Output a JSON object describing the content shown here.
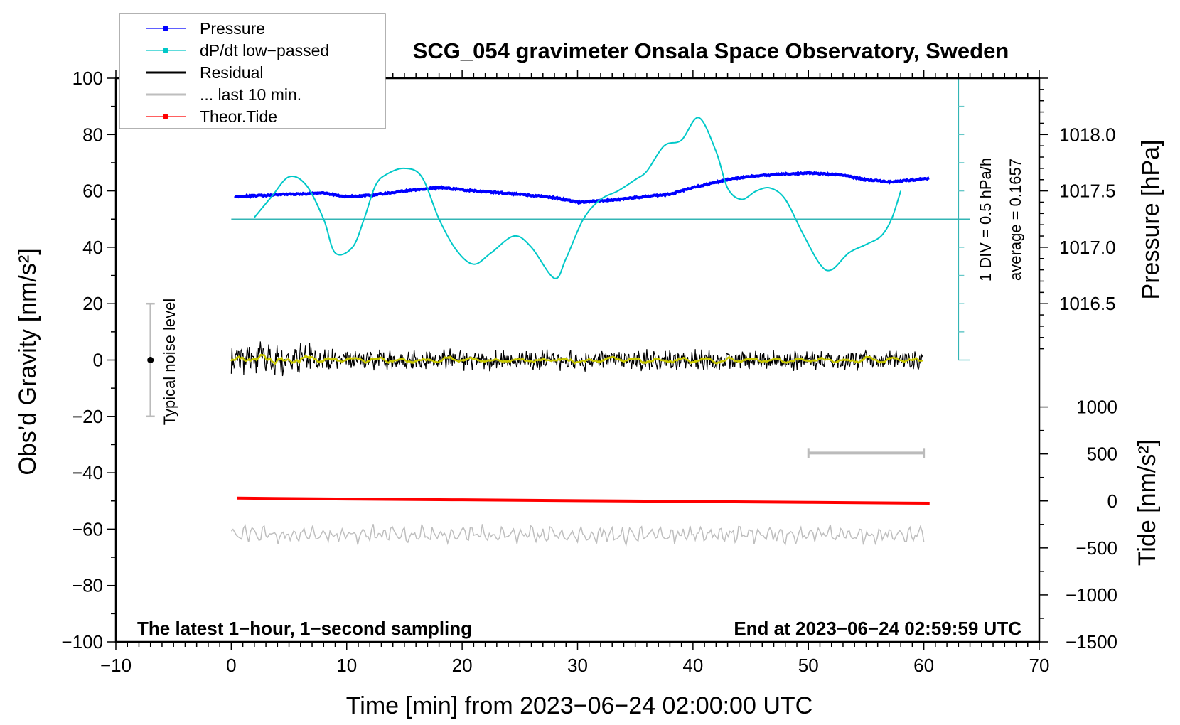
{
  "chart_data": {
    "type": "line",
    "title": "SCG_054 gravimeter Onsala Space Observatory, Sweden",
    "xlabel": "Time [min] from 2023−06−24 02:00:00 UTC",
    "ylabel": "Obs’d Gravity [nm/s²]",
    "y2label_pressure": "Pressure [hPa]",
    "y2label_tide": "Tide [nm/s²]",
    "xlim": [
      -10,
      70
    ],
    "ylim": [
      -100,
      100
    ],
    "xticks": [
      -10,
      0,
      10,
      20,
      30,
      40,
      50,
      60,
      70
    ],
    "xtick_labels": [
      "−10",
      "0",
      "10",
      "20",
      "30",
      "40",
      "50",
      "60",
      "70"
    ],
    "yticks": [
      100,
      80,
      60,
      40,
      20,
      0,
      -20,
      -40,
      -60,
      -80,
      -100
    ],
    "ytick_labels": [
      "100",
      "80",
      "60",
      "40",
      "20",
      "0",
      "−20",
      "−40",
      "−60",
      "−80",
      "−100"
    ],
    "pressure_ticks": [
      1018.0,
      1017.5,
      1017.0,
      1016.5
    ],
    "pressure_tick_labels": [
      "1018.0",
      "1017.5",
      "1017.0",
      "1016.5"
    ],
    "tide_ticks": [
      1000,
      500,
      0,
      -500,
      -1000,
      -1500
    ],
    "tide_tick_labels": [
      "1000",
      "500",
      "0",
      "−500",
      "−1000",
      "−1500"
    ],
    "legend": {
      "placement": "top-left",
      "entries": [
        {
          "label": "Pressure",
          "color": "#0000ff",
          "marker": true
        },
        {
          "label": "dP/dt low−passed",
          "color": "#00c8c8",
          "marker": true
        },
        {
          "label": "Residual",
          "color": "#000000",
          "marker": false
        },
        {
          "label": "... last 10 min.",
          "color": "#bebebe",
          "marker": false
        },
        {
          "label": "Theor.Tide",
          "color": "#ff0000",
          "marker": true
        }
      ]
    },
    "series": [
      {
        "name": "Pressure",
        "unit": "hPa",
        "color": "#0000ff",
        "x": [
          0.3,
          3,
          5,
          8,
          10,
          12,
          15,
          18,
          20,
          25,
          28,
          30,
          33,
          35,
          38,
          40,
          43,
          45,
          48,
          50,
          53,
          55,
          57,
          60.5
        ],
        "y": [
          1017.45,
          1017.46,
          1017.47,
          1017.48,
          1017.45,
          1017.46,
          1017.5,
          1017.53,
          1017.51,
          1017.47,
          1017.44,
          1017.4,
          1017.42,
          1017.44,
          1017.47,
          1017.53,
          1017.6,
          1017.63,
          1017.65,
          1017.66,
          1017.64,
          1017.6,
          1017.58,
          1017.61
        ]
      },
      {
        "name": "dP/dt low-passed",
        "unit": "hPa/h",
        "color": "#00c8c8",
        "baseline": 0,
        "average": 0.1657,
        "x": [
          2,
          3.5,
          5,
          6.5,
          8,
          9,
          10.5,
          11.5,
          12.5,
          13.5,
          15,
          16.5,
          18,
          19.5,
          21,
          22.5,
          24.5,
          26,
          28,
          29,
          30.5,
          32,
          33.5,
          35,
          36,
          37.5,
          39,
          40.5,
          42,
          43,
          44.2,
          45.5,
          46.7,
          48,
          49.5,
          51,
          52,
          53.5,
          55,
          56.3,
          57.2,
          58
        ],
        "y": [
          0.03,
          0.4,
          0.75,
          0.6,
          0.0,
          -0.6,
          -0.5,
          0.0,
          0.6,
          0.8,
          0.9,
          0.75,
          0.0,
          -0.55,
          -0.8,
          -0.6,
          -0.3,
          -0.5,
          -1.05,
          -0.7,
          0.0,
          0.35,
          0.5,
          0.7,
          0.85,
          1.3,
          1.4,
          1.8,
          1.2,
          0.55,
          0.35,
          0.5,
          0.55,
          0.35,
          -0.25,
          -0.8,
          -0.9,
          -0.6,
          -0.45,
          -0.3,
          0.0,
          0.5
        ]
      },
      {
        "name": "Residual",
        "unit": "nm/s²",
        "color": "#000000",
        "x_range": [
          0,
          60
        ],
        "mean": 0,
        "noise_amplitude_early": 6,
        "noise_amplitude_late": 3.5,
        "smoothed_color": "#c8c800"
      },
      {
        "name": "... last 10 min.",
        "unit": "nm/s²",
        "color": "#bebebe",
        "x_range": [
          0,
          60
        ],
        "offset": -62,
        "amplitude": 3
      },
      {
        "name": "Theor.Tide",
        "unit": "nm/s²",
        "color": "#ff0000",
        "x": [
          0.5,
          10,
          20,
          30,
          40,
          50,
          60.5
        ],
        "y": [
          30,
          20,
          12,
          3,
          -6,
          -15,
          -25
        ]
      }
    ],
    "noise_level_bar": {
      "label": "Typical noise level",
      "x": -7,
      "range": [
        -20,
        20
      ]
    },
    "last10_bar": {
      "x_range": [
        50,
        60
      ],
      "y": -33
    },
    "dpdt_axis": {
      "label_div": "1 DIV = 0.5 hPa/h",
      "label_avg": "average = 0.1657",
      "x": 63
    },
    "annotations": {
      "bottom_left": "The latest 1−hour, 1−second sampling",
      "bottom_right": "End at 2023−06−24 02:59:59 UTC"
    }
  }
}
